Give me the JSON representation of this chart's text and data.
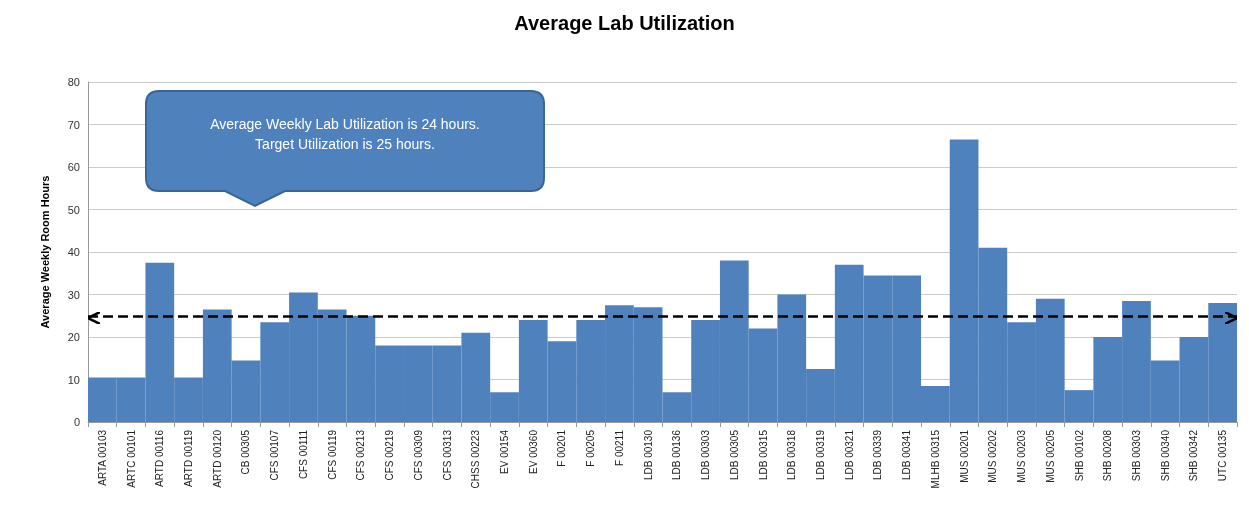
{
  "chart_data": {
    "type": "bar",
    "title": "Average Lab Utilization",
    "ylabel": "Average Weekly Room Hours",
    "categories": [
      "ARTA 00103",
      "ARTC 00101",
      "ARTD 00116",
      "ARTD 00119",
      "ARTD 00120",
      "CB 00305",
      "CFS 00107",
      "CFS 00111",
      "CFS 00119",
      "CFS 00213",
      "CFS 00219",
      "CFS 00309",
      "CFS 00313",
      "CHSS 00223",
      "EV 00154",
      "EV 00360",
      "F 00201",
      "F 00205",
      "F 00211",
      "LDB 00130",
      "LDB 00136",
      "LDB 00303",
      "LDB 00305",
      "LDB 00315",
      "LDB 00318",
      "LDB 00319",
      "LDB 00321",
      "LDB 00339",
      "LDB 00341",
      "MLHB 00315",
      "MUS 00201",
      "MUS 00202",
      "MUS 00203",
      "MUS 00205",
      "SHB 00102",
      "SHB 00208",
      "SHB 00303",
      "SHB 00340",
      "SHB 00342",
      "UTC 00135"
    ],
    "values": [
      10.5,
      10.5,
      37.5,
      10.5,
      26.5,
      14.5,
      23.5,
      30.5,
      26.5,
      25,
      18,
      18,
      18,
      21,
      7,
      24,
      19,
      24,
      27.5,
      27,
      7,
      24,
      38,
      22,
      30,
      12.5,
      37,
      34.5,
      34.5,
      8.5,
      66.5,
      41,
      23.5,
      29,
      7.5,
      20,
      28.5,
      14.5,
      20,
      28
    ],
    "color": "#4f81bd",
    "ylim": [
      0,
      80
    ],
    "yticks": [
      0,
      10,
      20,
      30,
      40,
      50,
      60,
      70,
      80
    ],
    "grid": "y",
    "ref_lines": [
      {
        "axis": "y",
        "value": 25,
        "color": "#000000",
        "line_style": "dashed"
      }
    ],
    "annotations": [
      "Average Weekly Lab Utilization is 24 hours. Target Utilization is 25 hours."
    ]
  }
}
